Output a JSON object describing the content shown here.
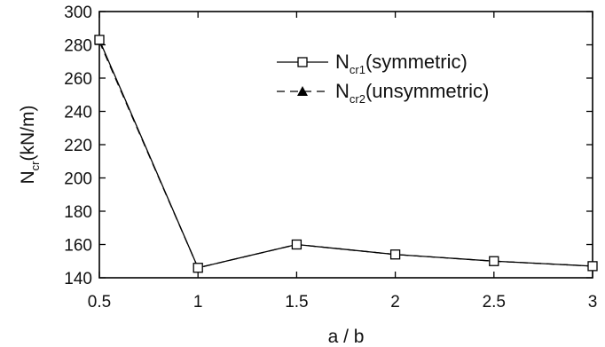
{
  "chart_data": {
    "type": "line",
    "x": [
      0.5,
      1,
      1.5,
      2,
      2.5,
      3
    ],
    "x_tick_labels": [
      "0.5",
      "1",
      "1.5",
      "2",
      "2.5",
      "3"
    ],
    "y_tick_labels": [
      "140",
      "160",
      "180",
      "200",
      "220",
      "240",
      "260",
      "280",
      "300"
    ],
    "xlim": [
      0.5,
      3
    ],
    "ylim": [
      140,
      300
    ],
    "x_ticks": [
      0.5,
      1,
      1.5,
      2,
      2.5,
      3
    ],
    "y_ticks": [
      140,
      160,
      180,
      200,
      220,
      240,
      260,
      280,
      300
    ],
    "xlabel": "a / b",
    "ylabel": {
      "main": "N",
      "sub": "cr",
      "rest": "(kN/m)"
    },
    "grid": false,
    "legend_position": "top-right",
    "series": [
      {
        "legend": {
          "main": "N",
          "sub": "cr1",
          "rest": "(symmetric)"
        },
        "marker": "open-square",
        "line": "solid",
        "values": [
          283,
          146,
          160,
          154,
          150,
          147
        ]
      },
      {
        "legend": {
          "main": "N",
          "sub": "cr2",
          "rest": "(unsymmetric)"
        },
        "marker": "filled-triangle",
        "line": "dashed",
        "values": [
          282,
          146,
          160,
          154,
          150,
          147
        ]
      }
    ]
  }
}
